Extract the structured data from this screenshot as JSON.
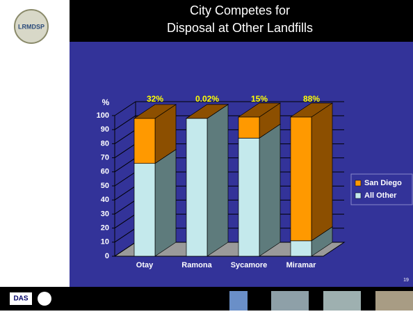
{
  "header": {
    "logo": "LRMDSP",
    "title_lines": [
      "City Competes for",
      "Disposal at Other Landfills"
    ]
  },
  "footer": {
    "logo": "DAS",
    "page_number": "19"
  },
  "chart_data": {
    "type": "bar",
    "stacked": true,
    "y_label": "%",
    "categories": [
      "Otay",
      "Ramona",
      "Sycamore",
      "Miramar"
    ],
    "series": [
      {
        "name": "All Other",
        "color": "#c4e9ec",
        "side_color": "#5e7b7c",
        "values": [
          66,
          98,
          84,
          11
        ]
      },
      {
        "name": "San Diego",
        "color": "#ff9900",
        "side_color": "#8c4f00",
        "values": [
          32,
          0.02,
          15,
          88
        ],
        "value_labels": [
          "32%",
          "0.02%",
          "15%",
          "88%"
        ]
      }
    ],
    "ylim": [
      0,
      100
    ],
    "yticks": [
      0,
      10,
      20,
      30,
      40,
      50,
      60,
      70,
      80,
      90,
      100
    ],
    "grid": true,
    "legend": "right"
  }
}
